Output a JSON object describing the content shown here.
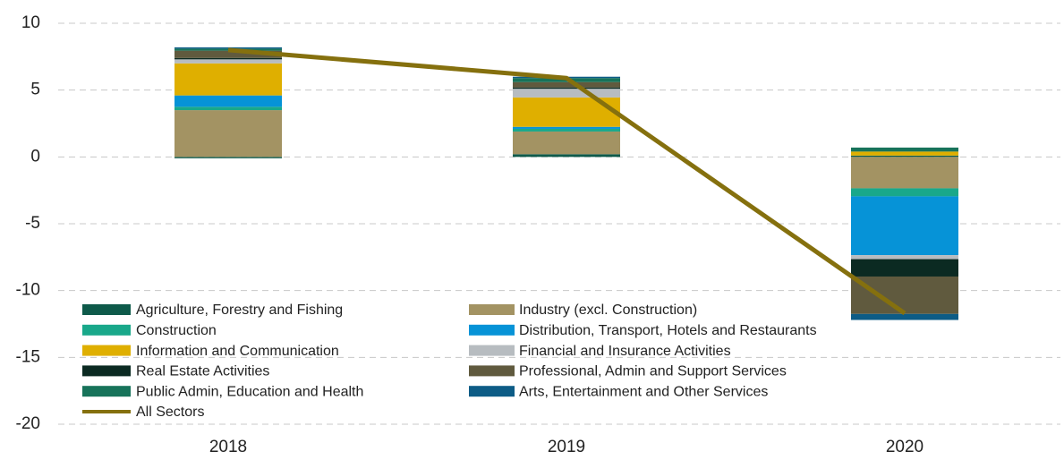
{
  "chart_data": {
    "type": "bar",
    "categories": [
      "2018",
      "2019",
      "2020"
    ],
    "series": [
      {
        "name": "Agriculture, Forestry and Fishing",
        "color": "#0e5a4a",
        "values": [
          -0.1,
          0.2,
          0.1
        ]
      },
      {
        "name": "Industry (excl. Construction)",
        "color": "#a39363",
        "values": [
          3.5,
          1.7,
          -2.35
        ]
      },
      {
        "name": "Construction",
        "color": "#19a88a",
        "values": [
          0.25,
          0.2,
          -0.6
        ]
      },
      {
        "name": "Distribution, Transport, Hotels and Restaurants",
        "color": "#0693d7",
        "values": [
          0.85,
          0.15,
          -4.4
        ]
      },
      {
        "name": "Information and Communication",
        "color": "#dfaf00",
        "values": [
          2.4,
          2.2,
          0.3
        ]
      },
      {
        "name": "Financial and Insurance Activities",
        "color": "#b7bcc0",
        "values": [
          0.3,
          0.65,
          -0.3
        ]
      },
      {
        "name": "Real Estate Activities",
        "color": "#0b2a22",
        "values": [
          0.1,
          0.1,
          -1.3
        ]
      },
      {
        "name": "Professional, Admin and Support Services",
        "color": "#605a3e",
        "values": [
          0.55,
          0.4,
          -2.8
        ]
      },
      {
        "name": "Public Admin, Education and Health",
        "color": "#17735a",
        "values": [
          0.15,
          0.3,
          0.3
        ]
      },
      {
        "name": "Arts, Entertainment and Other Services",
        "color": "#0d5c86",
        "values": [
          0.1,
          0.1,
          -0.45
        ]
      },
      {
        "name": "All Sectors",
        "color": "#85700e",
        "type": "line",
        "values": [
          8.0,
          5.9,
          -11.7
        ]
      }
    ],
    "ylim": [
      -20,
      10
    ],
    "yticks": [
      -20,
      -15,
      -10,
      -5,
      0,
      5,
      10
    ],
    "grid": true
  }
}
